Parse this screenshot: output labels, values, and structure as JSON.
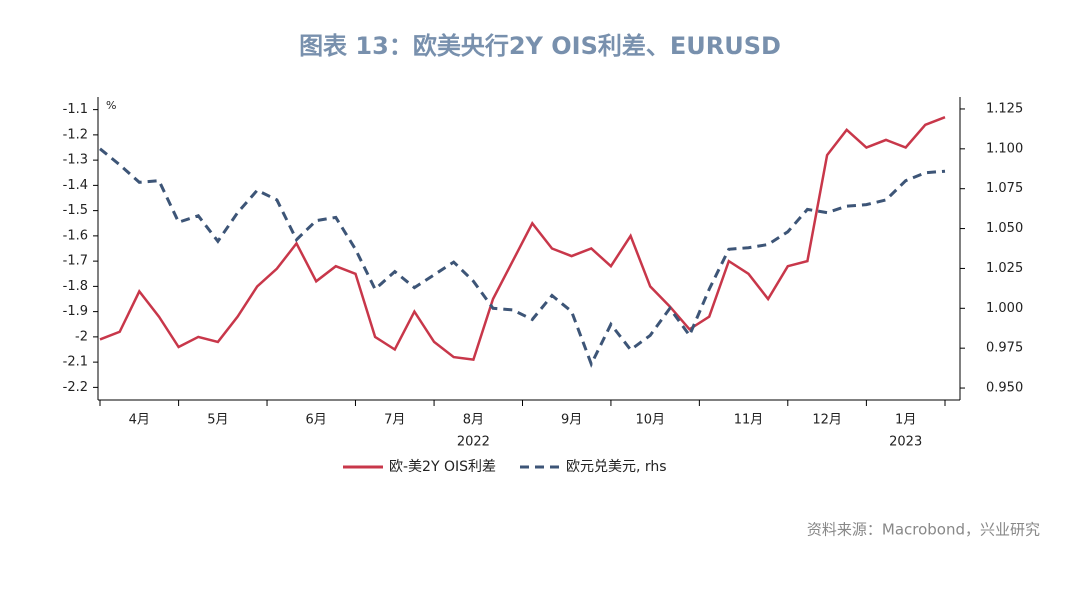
{
  "chart_data": {
    "type": "line",
    "title": "图表 13：欧美央行2Y OIS利差、EURUSD",
    "unit_label": "%",
    "source": "资料来源：Macrobond，兴业研究",
    "categories": [
      null,
      null,
      "4月",
      null,
      null,
      null,
      "5月",
      null,
      null,
      null,
      null,
      "6月",
      null,
      null,
      null,
      "7月",
      null,
      null,
      null,
      "8月",
      null,
      null,
      null,
      null,
      "9月",
      null,
      null,
      null,
      "10月",
      null,
      null,
      null,
      null,
      "11月",
      null,
      null,
      null,
      "12月",
      null,
      null,
      null,
      "1月",
      null,
      null
    ],
    "x_groups": [
      {
        "label": "2022",
        "index": 19
      },
      {
        "label": "2023",
        "index": 41
      }
    ],
    "series": [
      {
        "name": "欧-美2Y OIS利差",
        "color": "#c8374a",
        "dash": false,
        "axis": "y",
        "values": [
          -2.01,
          -1.98,
          -1.82,
          -1.92,
          -2.04,
          -2.0,
          -2.02,
          -1.92,
          -1.8,
          -1.73,
          -1.63,
          -1.78,
          -1.72,
          -1.75,
          -2.0,
          -2.05,
          -1.9,
          -2.02,
          -2.08,
          -2.09,
          -1.85,
          -1.7,
          -1.55,
          -1.65,
          -1.68,
          -1.65,
          -1.72,
          -1.6,
          -1.8,
          -1.88,
          -1.97,
          -1.92,
          -1.7,
          -1.75,
          -1.85,
          -1.72,
          -1.7,
          -1.28,
          -1.18,
          -1.25,
          -1.22,
          -1.25,
          -1.16,
          -1.13
        ]
      },
      {
        "name": "欧元兑美元, rhs",
        "color": "#3d5577",
        "dash": true,
        "axis": "y2",
        "values": [
          1.1,
          1.09,
          1.079,
          1.08,
          1.054,
          1.058,
          1.042,
          1.06,
          1.074,
          1.068,
          1.043,
          1.055,
          1.057,
          1.037,
          1.012,
          1.023,
          1.013,
          1.021,
          1.029,
          1.017,
          1.0,
          0.999,
          0.993,
          1.008,
          0.998,
          0.965,
          0.99,
          0.974,
          0.983,
          1.0,
          0.983,
          1.012,
          1.037,
          1.038,
          1.04,
          1.048,
          1.062,
          1.06,
          1.064,
          1.065,
          1.068,
          1.08,
          1.085,
          1.086
        ]
      }
    ],
    "ylim": [
      -2.25,
      -1.05
    ],
    "yticks": [
      -1.1,
      -1.2,
      -1.3,
      -1.4,
      -1.5,
      -1.6,
      -1.7,
      -1.8,
      -1.9,
      -2.0,
      -2.1,
      -2.2
    ],
    "y2lim": [
      0.9425,
      1.1325
    ],
    "y2ticks": [
      {
        "value": 1.125,
        "label": "1.125"
      },
      {
        "value": 1.1,
        "label": "1.100"
      },
      1.075,
      {
        "value": 1.05,
        "label": "1.050"
      },
      1.025,
      {
        "value": 1.0,
        "label": "1.000"
      },
      0.975,
      {
        "value": 0.95,
        "label": "0.950"
      }
    ],
    "legend": "bottom"
  }
}
